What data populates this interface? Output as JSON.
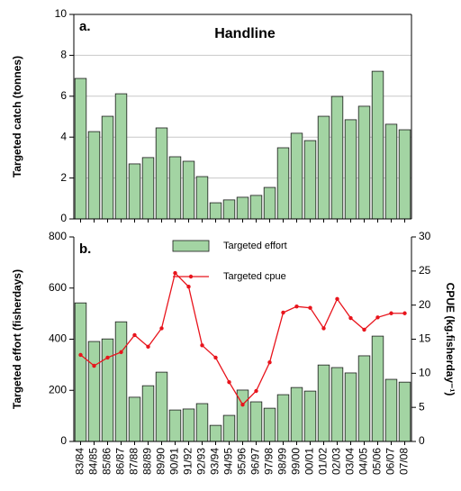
{
  "chart_data": [
    {
      "type": "bar",
      "panel_label": "a.",
      "title": "Handline",
      "ylabel": "Targeted catch (tonnes)",
      "values": [
        6.87,
        4.27,
        5.02,
        6.12,
        2.69,
        3.0,
        4.45,
        3.04,
        2.82,
        2.07,
        0.79,
        0.93,
        1.06,
        1.15,
        1.54,
        3.48,
        4.19,
        3.83,
        5.02,
        5.99,
        4.85,
        5.51,
        7.22,
        4.63,
        4.36
      ],
      "color": "#a3d4a3",
      "ylim": [
        0,
        10
      ],
      "yticks": [
        0,
        2,
        4,
        6,
        8,
        10
      ],
      "grid": true
    },
    {
      "type": "bar_line",
      "panel_label": "b.",
      "ylabel": "Targeted effort (fisherdays)",
      "y2label": "CPUE (kg.fisherday⁻¹)",
      "categories": [
        "83/84",
        "84/85",
        "85/86",
        "86/87",
        "87/88",
        "88/89",
        "89/90",
        "90/91",
        "91/92",
        "92/93",
        "93/94",
        "94/95",
        "95/96",
        "96/97",
        "97/98",
        "98/99",
        "99/00",
        "00/01",
        "01/02",
        "02/03",
        "03/04",
        "04/05",
        "05/06",
        "06/07",
        "07/08"
      ],
      "series": [
        {
          "name": "Targeted effort",
          "color": "#a3d4a3",
          "values": [
            542,
            391,
            401,
            468,
            173,
            218,
            271,
            123,
            127,
            148,
            63,
            102,
            201,
            155,
            130,
            183,
            211,
            197,
            299,
            289,
            268,
            335,
            412,
            243,
            232
          ]
        },
        {
          "name": "Targeted cpue",
          "color": "#e8141c",
          "axis": "y2",
          "values": [
            12.7,
            11.1,
            12.3,
            13.1,
            15.6,
            13.9,
            16.6,
            24.7,
            22.7,
            14.1,
            12.3,
            8.7,
            5.4,
            7.4,
            11.6,
            18.9,
            19.8,
            19.6,
            16.6,
            20.9,
            18.1,
            16.4,
            18.2,
            18.8,
            18.8
          ]
        }
      ],
      "ylim": [
        0,
        800
      ],
      "yticks": [
        0,
        200,
        400,
        600,
        800
      ],
      "y2lim": [
        0,
        30
      ],
      "y2ticks": [
        0,
        5,
        10,
        15,
        20,
        25,
        30
      ],
      "grid": false
    }
  ]
}
